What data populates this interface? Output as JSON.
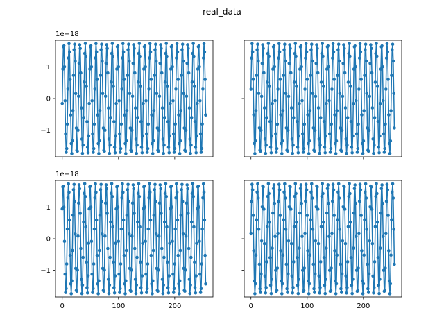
{
  "title": "real_data",
  "colors": {
    "series": "#1f77b4",
    "axes": "#000000",
    "background": "#ffffff"
  },
  "chart_data": {
    "type": "line",
    "layout": "2x2 subplots, shared x and y axes",
    "markers": "filled circles",
    "grid": false,
    "ylim": [
      -1.85,
      1.85
    ],
    "xlim": [
      -12,
      268
    ],
    "yticks": [
      -1,
      0,
      1
    ],
    "ytick_labels": [
      "−1",
      "0",
      "1"
    ],
    "xticks": [
      0,
      100,
      200
    ],
    "xtick_labels": [
      "0",
      "100",
      "200"
    ],
    "y_offset_label": "1e−18",
    "amplitude": 1.75,
    "samples": 256,
    "subplots": [
      {
        "period": 9.6,
        "phase": -0.09
      },
      {
        "period": 9.6,
        "phase": 0.17
      },
      {
        "period": 9.6,
        "phase": 0.57
      },
      {
        "period": 9.6,
        "phase": 0.09
      }
    ]
  }
}
